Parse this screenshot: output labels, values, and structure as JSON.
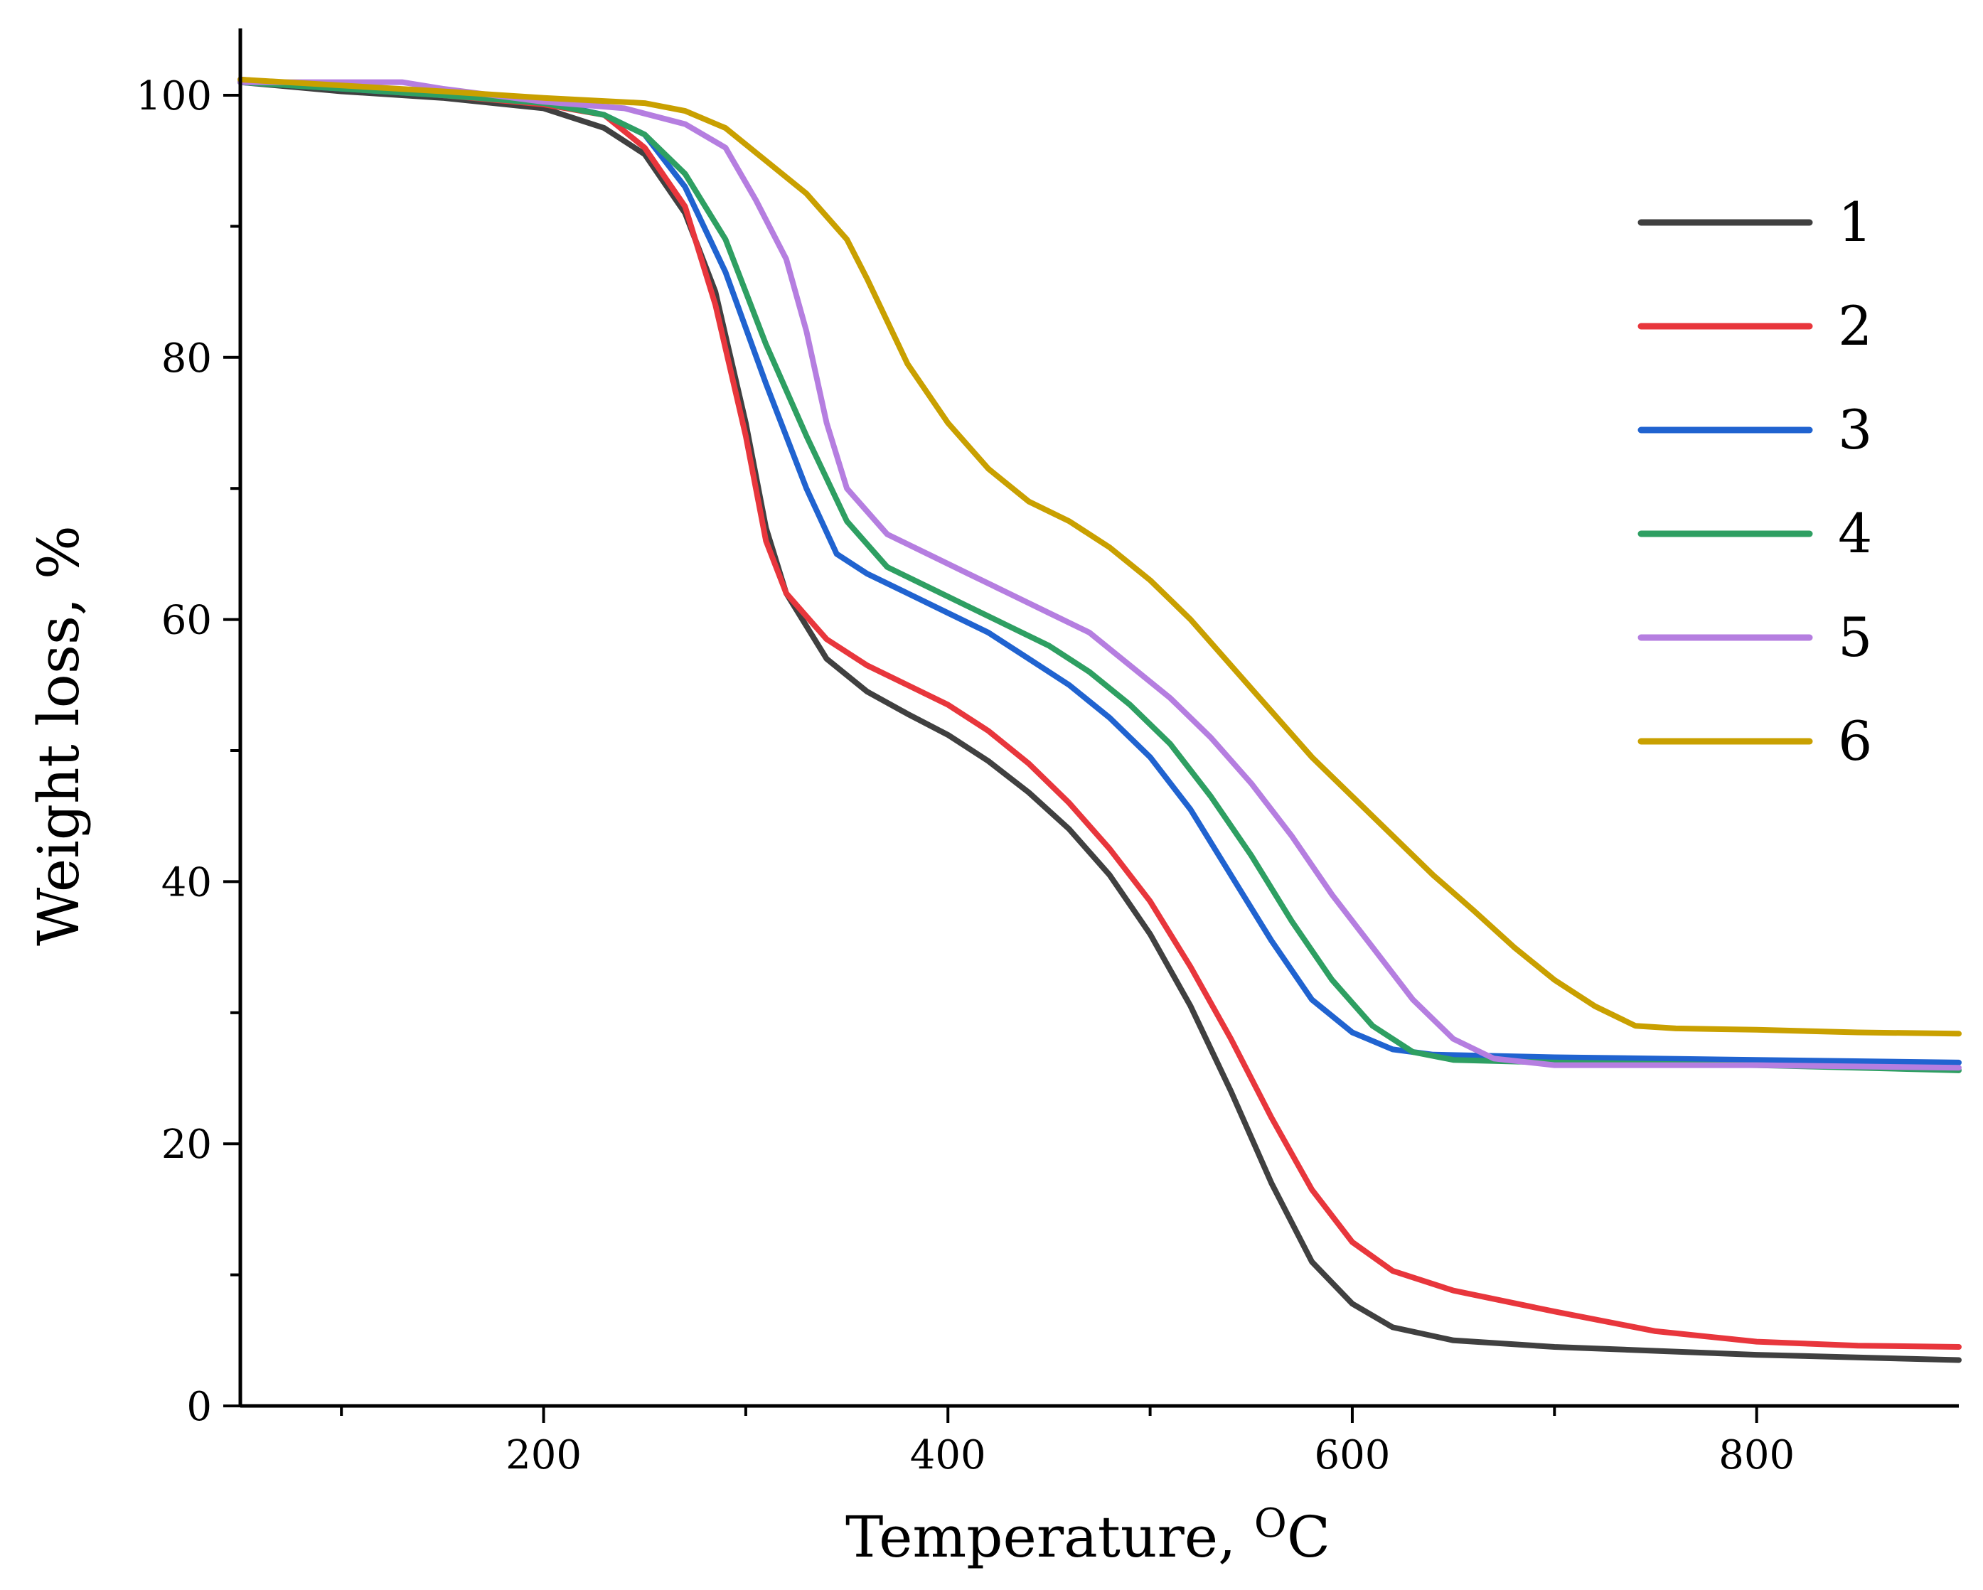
{
  "chart_data": {
    "type": "line",
    "xlabel": "Temperature, ",
    "xlabel_unit_sup": "O",
    "xlabel_unit": "C",
    "ylabel": "Weight loss, %",
    "xlim": [
      50,
      900
    ],
    "ylim": [
      0,
      105
    ],
    "x_ticks": [
      200,
      400,
      600,
      800
    ],
    "x_minor_ticks": [
      100,
      300,
      500,
      700
    ],
    "y_ticks": [
      0,
      20,
      40,
      60,
      80,
      100
    ],
    "y_minor_ticks": [
      10,
      30,
      50,
      70,
      90
    ],
    "grid": false,
    "legend_position": "top-right",
    "series": [
      {
        "name": "1",
        "color": "#404040",
        "points": [
          [
            50,
            101
          ],
          [
            100,
            100.3
          ],
          [
            150,
            99.8
          ],
          [
            200,
            99
          ],
          [
            230,
            97.5
          ],
          [
            250,
            95.5
          ],
          [
            270,
            91
          ],
          [
            285,
            85
          ],
          [
            300,
            75
          ],
          [
            310,
            67
          ],
          [
            320,
            62
          ],
          [
            340,
            57
          ],
          [
            360,
            54.5
          ],
          [
            380,
            52.8
          ],
          [
            400,
            51.2
          ],
          [
            420,
            49.2
          ],
          [
            440,
            46.8
          ],
          [
            460,
            44
          ],
          [
            480,
            40.5
          ],
          [
            500,
            36
          ],
          [
            520,
            30.5
          ],
          [
            540,
            24
          ],
          [
            560,
            17
          ],
          [
            580,
            11
          ],
          [
            600,
            7.8
          ],
          [
            620,
            6
          ],
          [
            650,
            5
          ],
          [
            700,
            4.5
          ],
          [
            800,
            3.9
          ],
          [
            900,
            3.5
          ]
        ]
      },
      {
        "name": "2",
        "color": "#e8363c",
        "points": [
          [
            50,
            101.2
          ],
          [
            100,
            100.6
          ],
          [
            150,
            100
          ],
          [
            200,
            99.3
          ],
          [
            230,
            98.5
          ],
          [
            250,
            96
          ],
          [
            270,
            91.5
          ],
          [
            285,
            84
          ],
          [
            300,
            74
          ],
          [
            310,
            66
          ],
          [
            320,
            62
          ],
          [
            340,
            58.5
          ],
          [
            360,
            56.5
          ],
          [
            380,
            55
          ],
          [
            400,
            53.5
          ],
          [
            420,
            51.5
          ],
          [
            440,
            49
          ],
          [
            460,
            46
          ],
          [
            480,
            42.5
          ],
          [
            500,
            38.5
          ],
          [
            520,
            33.5
          ],
          [
            540,
            28
          ],
          [
            560,
            22
          ],
          [
            580,
            16.5
          ],
          [
            600,
            12.5
          ],
          [
            620,
            10.3
          ],
          [
            650,
            8.8
          ],
          [
            700,
            7.2
          ],
          [
            750,
            5.7
          ],
          [
            800,
            4.9
          ],
          [
            850,
            4.6
          ],
          [
            900,
            4.5
          ]
        ]
      },
      {
        "name": "3",
        "color": "#2063d0",
        "points": [
          [
            50,
            101
          ],
          [
            150,
            100
          ],
          [
            200,
            99.5
          ],
          [
            230,
            98.5
          ],
          [
            250,
            97
          ],
          [
            270,
            93
          ],
          [
            290,
            86.5
          ],
          [
            310,
            78
          ],
          [
            330,
            70
          ],
          [
            345,
            65
          ],
          [
            360,
            63.5
          ],
          [
            380,
            62
          ],
          [
            400,
            60.5
          ],
          [
            420,
            59
          ],
          [
            440,
            57
          ],
          [
            460,
            55
          ],
          [
            480,
            52.5
          ],
          [
            500,
            49.5
          ],
          [
            520,
            45.5
          ],
          [
            540,
            40.5
          ],
          [
            560,
            35.5
          ],
          [
            580,
            31
          ],
          [
            600,
            28.5
          ],
          [
            620,
            27.2
          ],
          [
            640,
            26.8
          ],
          [
            700,
            26.6
          ],
          [
            800,
            26.4
          ],
          [
            900,
            26.2
          ]
        ]
      },
      {
        "name": "4",
        "color": "#2e9f62",
        "points": [
          [
            50,
            101
          ],
          [
            150,
            100
          ],
          [
            200,
            99.4
          ],
          [
            230,
            98.5
          ],
          [
            250,
            97
          ],
          [
            270,
            94
          ],
          [
            290,
            89
          ],
          [
            310,
            81
          ],
          [
            330,
            74
          ],
          [
            350,
            67.5
          ],
          [
            370,
            64
          ],
          [
            390,
            62.5
          ],
          [
            410,
            61
          ],
          [
            430,
            59.5
          ],
          [
            450,
            58
          ],
          [
            470,
            56
          ],
          [
            490,
            53.5
          ],
          [
            510,
            50.5
          ],
          [
            530,
            46.5
          ],
          [
            550,
            42
          ],
          [
            570,
            37
          ],
          [
            590,
            32.5
          ],
          [
            610,
            29
          ],
          [
            630,
            27
          ],
          [
            650,
            26.4
          ],
          [
            700,
            26.2
          ],
          [
            800,
            26
          ],
          [
            900,
            25.6
          ]
        ]
      },
      {
        "name": "5",
        "color": "#b57ee0",
        "points": [
          [
            50,
            101
          ],
          [
            130,
            101
          ],
          [
            150,
            100.5
          ],
          [
            200,
            99.5
          ],
          [
            240,
            99
          ],
          [
            270,
            97.8
          ],
          [
            290,
            96
          ],
          [
            305,
            92
          ],
          [
            320,
            87.5
          ],
          [
            330,
            82
          ],
          [
            340,
            75
          ],
          [
            350,
            70
          ],
          [
            370,
            66.5
          ],
          [
            390,
            65
          ],
          [
            410,
            63.5
          ],
          [
            430,
            62
          ],
          [
            450,
            60.5
          ],
          [
            470,
            59
          ],
          [
            490,
            56.5
          ],
          [
            510,
            54
          ],
          [
            530,
            51
          ],
          [
            550,
            47.5
          ],
          [
            570,
            43.5
          ],
          [
            590,
            39
          ],
          [
            610,
            35
          ],
          [
            630,
            31
          ],
          [
            650,
            28
          ],
          [
            670,
            26.5
          ],
          [
            700,
            26
          ],
          [
            800,
            26
          ],
          [
            900,
            25.8
          ]
        ]
      },
      {
        "name": "6",
        "color": "#c9a000",
        "points": [
          [
            50,
            101.2
          ],
          [
            150,
            100.3
          ],
          [
            200,
            99.8
          ],
          [
            250,
            99.4
          ],
          [
            270,
            98.8
          ],
          [
            290,
            97.5
          ],
          [
            310,
            95
          ],
          [
            330,
            92.5
          ],
          [
            350,
            89
          ],
          [
            360,
            86
          ],
          [
            380,
            79.5
          ],
          [
            400,
            75
          ],
          [
            420,
            71.5
          ],
          [
            440,
            69
          ],
          [
            460,
            67.5
          ],
          [
            480,
            65.5
          ],
          [
            500,
            63
          ],
          [
            520,
            60
          ],
          [
            540,
            56.5
          ],
          [
            560,
            53
          ],
          [
            580,
            49.5
          ],
          [
            600,
            46.5
          ],
          [
            620,
            43.5
          ],
          [
            640,
            40.5
          ],
          [
            660,
            37.8
          ],
          [
            680,
            35
          ],
          [
            700,
            32.5
          ],
          [
            720,
            30.5
          ],
          [
            740,
            29
          ],
          [
            760,
            28.8
          ],
          [
            800,
            28.7
          ],
          [
            850,
            28.5
          ],
          [
            900,
            28.4
          ]
        ]
      }
    ]
  }
}
